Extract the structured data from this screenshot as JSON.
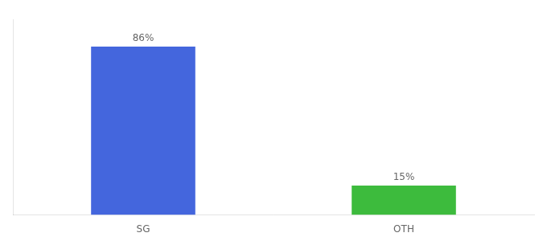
{
  "chart_data": {
    "type": "bar",
    "categories": [
      "SG",
      "OTH"
    ],
    "values": [
      86,
      15
    ],
    "value_labels": [
      "86%",
      "15%"
    ],
    "colors": [
      "#4466dd",
      "#3dbb3d"
    ],
    "ylim": [
      0,
      100
    ],
    "grid": false,
    "data_labels": true,
    "tick_labels": "x"
  }
}
